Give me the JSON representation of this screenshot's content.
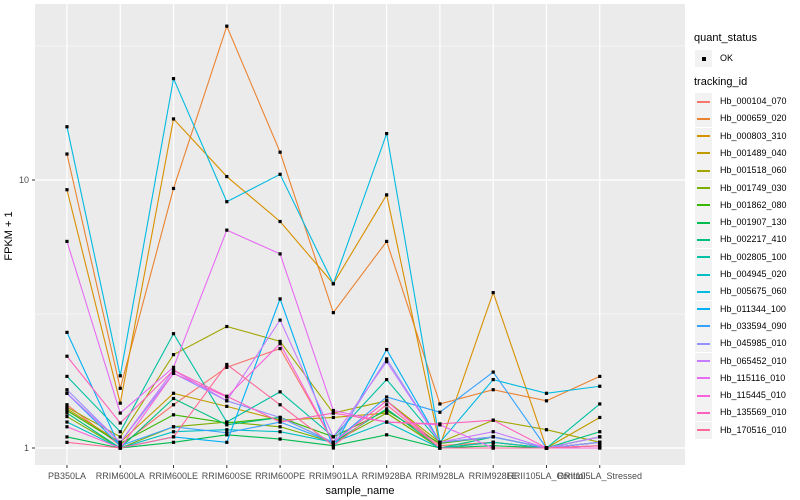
{
  "figure": {
    "y_axis_title": "FPKM + 1",
    "x_axis_title": "sample_name",
    "panel_bg": "#EBEBEB",
    "grid_color": "#FFFFFF",
    "marker_color": "#000000",
    "tick_label_color": "#4D4D4D",
    "legend_key_bg": "#F2F2F2"
  },
  "legend": {
    "quant_status_title": "quant_status",
    "quant_status_items": [
      {
        "label": "OK",
        "marker": "black-square-point"
      }
    ],
    "tracking_id_title": "tracking_id"
  },
  "chart_data": {
    "type": "line",
    "title": "",
    "xlabel": "sample_name",
    "ylabel": "FPKM + 1",
    "y_scale": "log10",
    "ylim": [
      1,
      45
    ],
    "y_ticks": [
      1,
      10
    ],
    "grid": true,
    "legend_position": "right",
    "marker": "small-black-square",
    "categories": [
      "PB350LA",
      "RRIM600LA",
      "RRIM600LE",
      "RRIM600SE",
      "RRIM600PE",
      "RRIM901LA",
      "RRIM928BA",
      "RRIM928LA",
      "RRIM928LE",
      "RRII105LA_Control",
      "RRII105LA_Stressed"
    ],
    "series": [
      {
        "name": "Hb_000104_070",
        "color": "#F8766D",
        "values": [
          1.45,
          1.02,
          1.45,
          2.0,
          2.35,
          1.05,
          1.5,
          1.02,
          1.05,
          1.0,
          1.05
        ]
      },
      {
        "name": "Hb_000659_020",
        "color": "#EA8331",
        "values": [
          12.5,
          1.67,
          9.3,
          37.5,
          12.7,
          3.2,
          5.9,
          1.46,
          1.65,
          1.5,
          1.85
        ]
      },
      {
        "name": "Hb_000803_310",
        "color": "#D89000",
        "values": [
          9.2,
          1.47,
          16.9,
          10.3,
          7.0,
          4.1,
          8.8,
          1.02,
          3.8,
          1.0,
          1.05
        ]
      },
      {
        "name": "Hb_001489_040",
        "color": "#C09B00",
        "values": [
          1.4,
          1.05,
          1.6,
          1.43,
          1.27,
          1.3,
          1.35,
          1.0,
          1.05,
          1.0,
          1.3
        ]
      },
      {
        "name": "Hb_001518_060",
        "color": "#A3A500",
        "values": [
          1.42,
          1.1,
          2.23,
          2.84,
          2.5,
          1.35,
          1.5,
          1.05,
          1.27,
          1.17,
          1.05
        ]
      },
      {
        "name": "Hb_001749_030",
        "color": "#7CAE00",
        "values": [
          1.31,
          1.0,
          1.2,
          1.25,
          1.2,
          1.05,
          1.35,
          1.0,
          1.05,
          1.0,
          1.05
        ]
      },
      {
        "name": "Hb_001862_080",
        "color": "#39B600",
        "values": [
          1.38,
          1.04,
          1.33,
          1.24,
          1.3,
          1.1,
          1.38,
          1.04,
          1.1,
          1.0,
          1.1
        ]
      },
      {
        "name": "Hb_001907_130",
        "color": "#00BB4E",
        "values": [
          1.1,
          1.0,
          1.05,
          1.12,
          1.08,
          1.02,
          1.12,
          1.0,
          1.02,
          1.0,
          1.02
        ]
      },
      {
        "name": "Hb_002217_410",
        "color": "#00BF7D",
        "values": [
          1.35,
          1.0,
          1.53,
          1.22,
          1.3,
          1.05,
          1.4,
          1.0,
          1.1,
          1.0,
          1.15
        ]
      },
      {
        "name": "Hb_002805_100",
        "color": "#00C1A3",
        "values": [
          1.85,
          1.15,
          2.67,
          1.25,
          1.62,
          1.1,
          1.8,
          1.05,
          1.1,
          1.0,
          1.46
        ]
      },
      {
        "name": "Hb_004945_020",
        "color": "#00BFC4",
        "values": [
          1.25,
          1.0,
          1.15,
          1.17,
          1.15,
          1.05,
          1.25,
          1.0,
          1.05,
          1.0,
          1.1
        ]
      },
      {
        "name": "Hb_005675_060",
        "color": "#00BAE0",
        "values": [
          15.8,
          1.86,
          23.9,
          8.3,
          10.5,
          4.1,
          14.9,
          1.05,
          1.8,
          1.6,
          1.7
        ]
      },
      {
        "name": "Hb_011344_100",
        "color": "#00B0F6",
        "values": [
          2.7,
          1.0,
          1.1,
          1.05,
          3.6,
          1.0,
          2.33,
          1.05,
          1.1,
          1.0,
          1.05
        ]
      },
      {
        "name": "Hb_033594_090",
        "color": "#35A2FF",
        "values": [
          1.6,
          1.02,
          1.2,
          1.14,
          1.25,
          1.05,
          1.55,
          1.36,
          1.92,
          1.0,
          1.05
        ]
      },
      {
        "name": "Hb_045985_010",
        "color": "#9590FF",
        "values": [
          1.65,
          1.05,
          1.9,
          1.5,
          1.3,
          1.05,
          2.15,
          1.05,
          1.1,
          1.0,
          1.05
        ]
      },
      {
        "name": "Hb_065452_010",
        "color": "#C77CFF",
        "values": [
          1.6,
          1.05,
          1.95,
          1.5,
          3.0,
          1.1,
          2.1,
          1.05,
          1.15,
          1.0,
          1.1
        ]
      },
      {
        "name": "Hb_115116_010",
        "color": "#E76BF3",
        "values": [
          5.9,
          1.35,
          2.0,
          6.5,
          5.3,
          1.38,
          1.25,
          1.22,
          1.0,
          1.0,
          1.0
        ]
      },
      {
        "name": "Hb_115445_010",
        "color": "#FA62DB",
        "values": [
          1.2,
          1.0,
          1.9,
          1.55,
          2.45,
          1.05,
          1.5,
          1.0,
          1.0,
          1.0,
          1.0
        ]
      },
      {
        "name": "Hb_135569_010",
        "color": "#FF62BC",
        "values": [
          2.2,
          1.24,
          1.95,
          1.56,
          1.25,
          1.35,
          1.25,
          1.23,
          1.27,
          1.0,
          1.02
        ]
      },
      {
        "name": "Hb_170516_010",
        "color": "#FF6A98",
        "values": [
          1.05,
          1.0,
          1.1,
          2.05,
          1.45,
          1.02,
          1.45,
          1.0,
          1.0,
          1.0,
          1.02
        ]
      }
    ]
  }
}
